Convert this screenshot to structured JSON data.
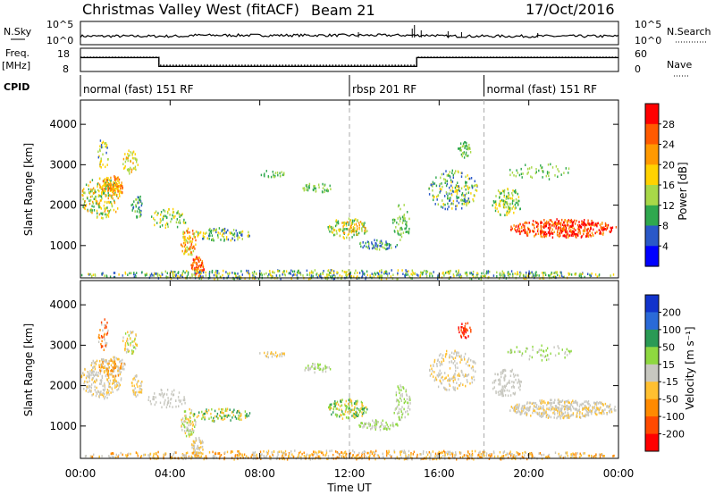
{
  "header": {
    "title": "Christmas Valley West (fitACF)",
    "beam": "Beam 21",
    "date": "17/Oct/2016"
  },
  "nsky_panel": {
    "left_label": "N.Sky",
    "right_label": "N.Search",
    "left_ticks": [
      "10^5",
      "10^0"
    ],
    "right_ticks": [
      "10^5",
      "10^0"
    ]
  },
  "freq_panel": {
    "left_label_line1": "Freq.",
    "left_label_line2": "[MHz]",
    "right_label": "Nave",
    "left_ticks": [
      "18",
      "8"
    ],
    "right_ticks": [
      "60",
      "0"
    ],
    "segments": [
      {
        "start": 0,
        "end": 3.5,
        "freq": 14
      },
      {
        "start": 3.5,
        "end": 15.0,
        "freq": 10.2
      },
      {
        "start": 15.0,
        "end": 24,
        "freq": 14
      }
    ]
  },
  "cpid": {
    "label": "CPID",
    "segments": [
      {
        "start": 0,
        "end": 12.0,
        "text": "normal (fast) 151 RF"
      },
      {
        "start": 12.0,
        "end": 18.0,
        "text": "rbsp 201 RF"
      },
      {
        "start": 18.0,
        "end": 24,
        "text": "normal (fast) 151 RF"
      }
    ]
  },
  "chart_data": [
    {
      "type": "heatmap",
      "name": "power",
      "ylabel": "Slant Range [km]",
      "yticks": [
        "4000",
        "3000",
        "2000",
        "1000"
      ],
      "ytick_values": [
        4000,
        3000,
        2000,
        1000
      ],
      "ylim": [
        200,
        4600
      ],
      "xlim": [
        0,
        24
      ],
      "colorbar_label": "Power [dB]",
      "colorbar_ticks": [
        "28",
        "24",
        "20",
        "16",
        "12",
        "8",
        "4"
      ],
      "colorbar_colors": [
        "#ff0000",
        "#ff5a00",
        "#ff9900",
        "#ffd200",
        "#a8d848",
        "#2fa84e",
        "#2a58c8",
        "#0000ff"
      ]
    },
    {
      "type": "heatmap",
      "name": "velocity",
      "ylabel": "Slant Range [km]",
      "yticks": [
        "4000",
        "3000",
        "2000",
        "1000"
      ],
      "ytick_values": [
        4000,
        3000,
        2000,
        1000
      ],
      "ylim": [
        200,
        4600
      ],
      "xlim": [
        0,
        24
      ],
      "colorbar_label": "Velocity [m s⁻¹]",
      "colorbar_ticks": [
        "200",
        "100",
        "50",
        "15",
        "-15",
        "-50",
        "-100",
        "-200"
      ],
      "colorbar_colors": [
        "#1133cc",
        "#2a6ad8",
        "#2a9a55",
        "#8ed840",
        "#c8c8c0",
        "#ffc030",
        "#ff8a00",
        "#ff4a00",
        "#ff0000"
      ]
    }
  ],
  "xaxis": {
    "label": "Time UT",
    "ticks": [
      "00:00",
      "04:00",
      "08:00",
      "12:00",
      "16:00",
      "20:00",
      "00:00"
    ],
    "tick_values": [
      0,
      4,
      8,
      12,
      16,
      20,
      24
    ]
  },
  "colors": {
    "ground": "#ffb020"
  }
}
